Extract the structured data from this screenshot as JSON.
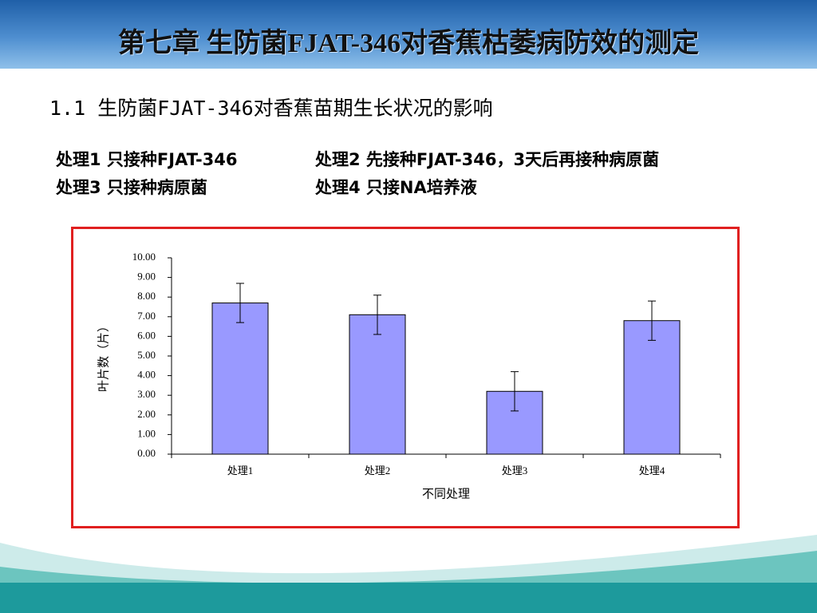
{
  "slide": {
    "title": "第七章 生防菌FJAT-346对香蕉枯萎病防效的测定",
    "subtitle": "1.1 生防菌FJAT-346对香蕉苗期生长状况的影响",
    "notes": [
      "处理1 只接种FJAT-346",
      "处理2 先接种FJAT-346，3天后再接种病原菌",
      "处理3 只接种病原菌",
      "处理4 只接NA培养液"
    ]
  },
  "chart_data": {
    "type": "bar",
    "x_label": "不同处理",
    "y_label": "叶片数（片）",
    "categories": [
      "处理1",
      "处理2",
      "处理3",
      "处理4"
    ],
    "values": [
      7.7,
      7.1,
      3.2,
      6.8
    ],
    "errors": [
      1.0,
      1.0,
      1.0,
      1.0
    ],
    "color": "#9999ff",
    "ylim": [
      0,
      10
    ],
    "yticks": [
      {
        "value": 0,
        "label": "0.00"
      },
      {
        "value": 1,
        "label": "1.00"
      },
      {
        "value": 2,
        "label": "2.00"
      },
      {
        "value": 3,
        "label": "3.00"
      },
      {
        "value": 4,
        "label": "4.00"
      },
      {
        "value": 5,
        "label": "5.00"
      },
      {
        "value": 6,
        "label": "6.00"
      },
      {
        "value": 7,
        "label": "7.00"
      },
      {
        "value": 8,
        "label": "8.00"
      },
      {
        "value": 9,
        "label": "9.00"
      },
      {
        "value": 10,
        "label": "10.00"
      }
    ],
    "grid": false
  }
}
